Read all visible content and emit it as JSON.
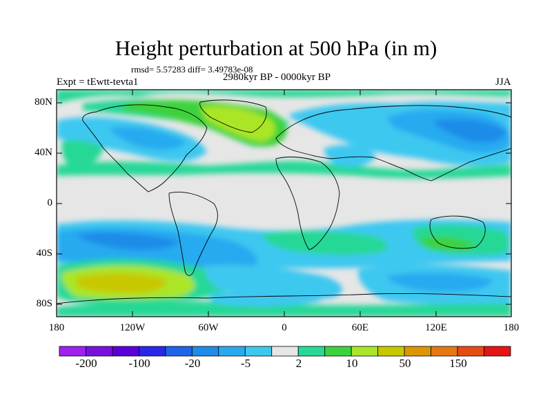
{
  "title": "Height perturbation at 500 hPa (in m)",
  "stats": "rmsd= 5.57283 diff= 3.49783e-08",
  "experiment": "Expt = tEwtt-tevta1",
  "period": "2980kyr BP - 0000kyr BP",
  "season": "JJA",
  "lat_ticks": [
    "80N",
    "40N",
    "0",
    "40S",
    "80S"
  ],
  "lon_ticks": [
    "180",
    "120W",
    "60W",
    "0",
    "60E",
    "120E",
    "180"
  ],
  "colorbar": {
    "colors": [
      "#a020f0",
      "#7a10e0",
      "#5a00d8",
      "#2828e8",
      "#1e64e8",
      "#1e8ce8",
      "#28aaf0",
      "#3cc8f0",
      "#e6e6e6",
      "#28d896",
      "#3cd23c",
      "#aae628",
      "#c8c800",
      "#dc9600",
      "#e67814",
      "#e64b14",
      "#e61414"
    ],
    "labels": [
      "-200",
      "-100",
      "-20",
      "-5",
      "2",
      "10",
      "50",
      "150"
    ]
  }
}
